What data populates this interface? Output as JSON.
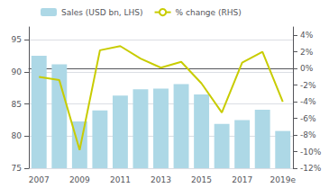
{
  "chart_data": {
    "type": "bar",
    "categories": [
      "2007",
      null,
      "2009",
      null,
      "2011",
      null,
      "2013",
      null,
      "2015",
      null,
      "2017",
      null,
      "2019e"
    ],
    "series": [
      {
        "name": "Sales (USD bn, LHS)",
        "type": "bar",
        "color": "#add8e6",
        "values": [
          92.5,
          91.2,
          82.3,
          84.0,
          86.3,
          87.3,
          87.4,
          88.1,
          86.5,
          81.9,
          82.5,
          84.1,
          80.8
        ]
      },
      {
        "name": "% change (RHS)",
        "type": "line",
        "axis": "y2",
        "color": "#c8cc00",
        "values": [
          -1.0,
          -1.4,
          -9.8,
          2.2,
          2.7,
          1.2,
          0.1,
          0.8,
          -1.8,
          -5.3,
          0.7,
          2.0,
          -4.0
        ]
      }
    ],
    "ylim": [
      75,
      97
    ],
    "yticks": [
      75,
      80,
      85,
      90,
      95
    ],
    "y2lim": [
      -12,
      5
    ],
    "y2ticks": [
      {
        "value": -12,
        "label": "-12%"
      },
      {
        "value": -10,
        "label": "-10%"
      },
      {
        "value": -8,
        "label": "-8%"
      },
      {
        "value": -6,
        "label": "-6%"
      },
      {
        "value": -4,
        "label": "-4%"
      },
      {
        "value": -2,
        "label": "-2%"
      },
      {
        "value": 0,
        "label": "0%"
      },
      {
        "value": 2,
        "label": "2%"
      },
      {
        "value": 4,
        "label": "4%"
      }
    ],
    "grid": true,
    "legend": "upper left"
  }
}
